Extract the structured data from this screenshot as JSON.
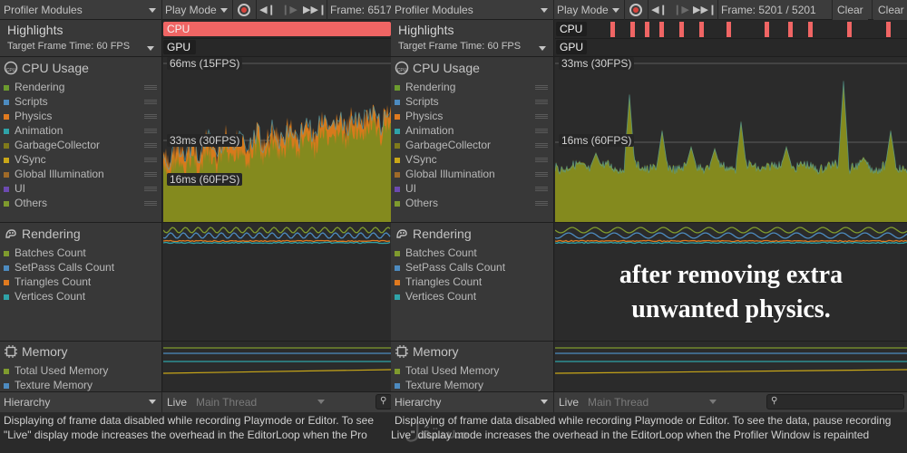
{
  "left": {
    "toolbar": {
      "modules": "Profiler Modules",
      "play_mode": "Play Mode",
      "frame": "Frame: 6517"
    },
    "highlights": "Highlights",
    "target_frame": "Target Frame Time: 60 FPS",
    "cpu_pill": "CPU",
    "gpu_pill": "GPU",
    "cpu": {
      "title": "CPU Usage",
      "legend": [
        "Rendering",
        "Scripts",
        "Physics",
        "Animation",
        "GarbageCollector",
        "VSync",
        "Global Illumination",
        "UI",
        "Others"
      ],
      "marks": [
        "66ms (15FPS)",
        "33ms (30FPS)",
        "16ms (60FPS)"
      ]
    },
    "rendering": {
      "title": "Rendering",
      "legend": [
        "Batches Count",
        "SetPass Calls Count",
        "Triangles Count",
        "Vertices Count"
      ]
    },
    "memory": {
      "title": "Memory",
      "legend": [
        "Total Used Memory",
        "Texture Memory"
      ]
    },
    "bottom": {
      "hierarchy": "Hierarchy",
      "live": "Live",
      "thread": "Main Thread"
    }
  },
  "right": {
    "toolbar": {
      "modules": "Profiler Modules",
      "play_mode": "Play Mode",
      "frame": "Frame: 5201 / 5201",
      "clear": "Clear",
      "clear2": "Clear"
    },
    "highlights": "Highlights",
    "target_frame": "Target Frame Time: 60 FPS",
    "cpu_pill": "CPU",
    "gpu_pill": "GPU",
    "cpu": {
      "title": "CPU Usage",
      "legend": [
        "Rendering",
        "Scripts",
        "Physics",
        "Animation",
        "GarbageCollector",
        "VSync",
        "Global Illumination",
        "UI",
        "Others"
      ],
      "marks": [
        "33ms (30FPS)",
        "16ms (60FPS)"
      ]
    },
    "rendering": {
      "title": "Rendering",
      "legend": [
        "Batches Count",
        "SetPass Calls Count",
        "Triangles Count",
        "Vertices Count"
      ]
    },
    "memory": {
      "title": "Memory",
      "legend": [
        "Total Used Memory",
        "Texture Memory"
      ]
    },
    "bottom": {
      "hierarchy": "Hierarchy",
      "live": "Live",
      "thread": "Main Thread"
    }
  },
  "legend_colors": {
    "cpu": [
      "#6c9b2e",
      "#4d8bc0",
      "#e07a1f",
      "#2fa3a8",
      "#807a1a",
      "#c9a718",
      "#a06a28",
      "#6c4ab0",
      "#7f9b2e"
    ],
    "rendering": [
      "#7f9b2e",
      "#4d8bc0",
      "#e07a1f",
      "#2fa3a8"
    ],
    "memory": [
      "#7f9b2e",
      "#4d8bc0"
    ]
  },
  "status": {
    "left_line1": "Displaying of frame data disabled while recording Playmode or Editor. To see",
    "left_line2": "\"Live\" display mode increases the overhead in the EditorLoop when the Pro",
    "right_line1": "Displaying of frame data disabled while recording Playmode or Editor. To see the data, pause recording",
    "right_line2": "Live\" display mode increases the overhead in the EditorLoop when the Profiler Window is repainted"
  },
  "overlay": {
    "line1": "after removing extra",
    "line2": "unwanted physics."
  },
  "watermark": "مستقل",
  "icons": [
    "chevron-down-icon",
    "record-icon",
    "step-back-icon",
    "step-forward-icon",
    "skip-forward-icon",
    "cpu-chip-icon",
    "rendering-icon",
    "memory-chip-icon",
    "search-icon"
  ]
}
